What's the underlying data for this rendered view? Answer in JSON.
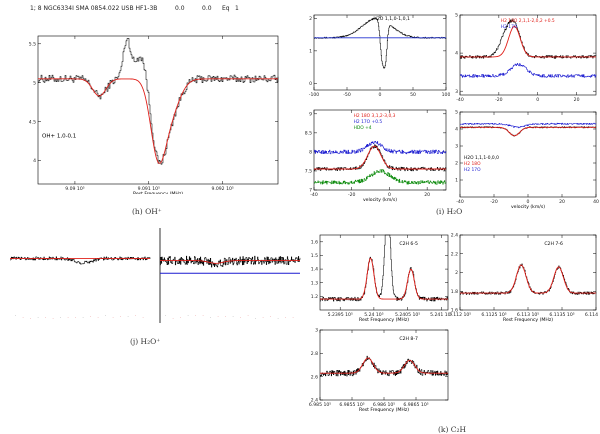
{
  "header": {
    "text": "1;  8 NGC6334I SMA 0854.022 USB HF1-3B",
    "zero1": "0.0",
    "zero2": "0.0",
    "eq": "Eq",
    "one": "1"
  },
  "captions": {
    "h": "(h) OH⁺",
    "i": "(i) H₂O",
    "j": "(j) H₂O⁺",
    "k": "(k) C₂H"
  },
  "chart_data": [
    {
      "id": "h",
      "type": "line",
      "title": "OH+ 1,0-0,1",
      "xlabel": "Rest Frequency (MHz)",
      "xlim": [
        908950,
        909275
      ],
      "ylim": [
        3.7,
        5.6
      ],
      "xticks": [
        909000,
        909100,
        909200
      ],
      "xtick_labels": [
        "9.09 10⁵",
        "9.091 10⁵",
        "9.092 10⁵"
      ],
      "yticks": [
        4,
        4.5,
        5,
        5.5
      ],
      "ytick_labels": [
        "4",
        "4.5",
        "5",
        "5.5"
      ],
      "model": {
        "baseline": 5.05,
        "components": [
          {
            "center": 909033,
            "depth": 0.22,
            "sigma": 9
          },
          {
            "center": 909112,
            "depth": 0.85,
            "sigma": 10
          },
          {
            "center": 909128,
            "depth": 0.45,
            "sigma": 13
          }
        ]
      },
      "obs_extra": [
        {
          "center": 909070,
          "amp": 0.5,
          "sigma": 5
        },
        {
          "center": 909090,
          "amp": 0.35,
          "sigma": 8
        }
      ],
      "noise": 0.05,
      "label_pos": [
        909005,
        4.3
      ]
    },
    {
      "id": "i1",
      "type": "line",
      "title": "H2O 1,1,0-1,0,1",
      "xlim": [
        -100,
        100
      ],
      "ylim": [
        -0.2,
        2.1
      ],
      "xticks": [
        -100,
        -50,
        0,
        50,
        100
      ],
      "xtick_labels": [
        "-100",
        "-50",
        "0",
        "50",
        "100"
      ],
      "yticks": [
        0,
        1,
        2
      ],
      "ytick_labels": [
        "0",
        "1",
        "2"
      ],
      "model": {
        "baseline": 1.4
      },
      "obs_extra": [
        {
          "center": -5,
          "amp": 0.6,
          "sigma": 22
        },
        {
          "center": 3,
          "amp": -1.2,
          "sigma": 3
        },
        {
          "center": 8,
          "amp": -1.0,
          "sigma": 2.5
        }
      ],
      "noise": 0.02,
      "label_pos": [
        -10,
        1.95
      ]
    },
    {
      "id": "i2",
      "type": "line",
      "title": "H2 18O 2,1,1-2,0,2 +0.5",
      "legend": [
        "H2 18O 2,1,1-2,0,2 +0.5",
        "H2 17O"
      ],
      "xlim": [
        -40,
        30
      ],
      "ylim": [
        2.9,
        5.0
      ],
      "xticks": [
        -40,
        -20,
        0,
        20
      ],
      "xtick_labels": [
        "-40",
        "-20",
        "0",
        "20"
      ],
      "yticks": [
        3,
        4,
        5
      ],
      "ytick_labels": [
        "3",
        "4",
        "5"
      ],
      "model": {
        "baseline": 3.9,
        "components": [
          {
            "center": -12,
            "depth": -0.8,
            "sigma": 3
          }
        ]
      },
      "obs_extra": [
        {
          "center": -17,
          "amp": 0.5,
          "sigma": 3
        }
      ],
      "extra_series": {
        "baseline": 3.4,
        "peak": -10,
        "amp": 0.3,
        "sigma": 4
      },
      "noise": 0.04
    },
    {
      "id": "i3",
      "type": "line",
      "title": "H2 18O 3,1,2-3,0,3",
      "legend": [
        "H2 18O 3,1,2-3,0,3",
        "H2 17O +0.5",
        "HDO +4"
      ],
      "xlabel": "velocity (km/s)",
      "xlim": [
        -40,
        30
      ],
      "ylim": [
        7,
        9.1
      ],
      "xticks": [
        -40,
        -20,
        0,
        20
      ],
      "xtick_labels": [
        "-40",
        "-20",
        "0",
        "20"
      ],
      "yticks": [
        7,
        7.5,
        8,
        8.5,
        9
      ],
      "ytick_labels": [
        "7",
        "7.5",
        "8",
        "8.5",
        "9"
      ],
      "model": {
        "baseline": 7.55,
        "components": [
          {
            "center": -8,
            "depth": -0.6,
            "sigma": 3.5
          }
        ]
      },
      "extra_series": {
        "baseline": 8.0,
        "peak": -8,
        "amp": 0.25,
        "sigma": 4
      },
      "green_series": {
        "baseline": 7.2,
        "peak": -5,
        "amp": 0.3,
        "sigma": 5
      },
      "noise": 0.05
    },
    {
      "id": "i4",
      "type": "line",
      "title": "H2O 1,1,1-0,0,0",
      "legend": [
        "H2O 1,1,1-0,0,0",
        "H2 18O",
        "H2 17O"
      ],
      "xlabel": "velocity (km/s)",
      "xlim": [
        -40,
        40
      ],
      "ylim": [
        0,
        5.0
      ],
      "xticks": [
        -40,
        -20,
        0,
        20,
        40
      ],
      "xtick_labels": [
        "-40",
        "-20",
        "0",
        "20",
        "40"
      ],
      "yticks": [
        1,
        2,
        3,
        4,
        5
      ],
      "ytick_labels": [
        "1",
        "2",
        "3",
        "4",
        "5"
      ],
      "model": {
        "baseline": 4.1,
        "components": [
          {
            "center": -8,
            "depth": 0.5,
            "sigma": 3
          }
        ]
      },
      "extra_series": {
        "baseline": 4.3,
        "peak": -6,
        "amp": -0.2,
        "sigma": 4
      },
      "noise": 0.04
    },
    {
      "id": "j1",
      "type": "line",
      "xlim": [
        0,
        100
      ],
      "ylim": [
        0,
        10
      ],
      "model": {
        "baseline": 7.2
      },
      "obs_extra": [
        {
          "center": 52,
          "amp": -0.8,
          "sigma": 6
        }
      ],
      "noise": 0.3
    },
    {
      "id": "j2",
      "type": "line",
      "xlim": [
        0,
        100
      ],
      "ylim": [
        0,
        10
      ],
      "model": {
        "baseline": 6.8,
        "components": [
          {
            "center": 40,
            "depth": 0.5,
            "sigma": 5
          }
        ]
      },
      "noise": 0.8
    },
    {
      "id": "k1",
      "type": "line",
      "title": "C2H 6-5",
      "xlabel": "Rest Frequency (MHz)",
      "xlim": [
        523920,
        524110
      ],
      "ylim": [
        1.1,
        1.65
      ],
      "xticks": [
        523950,
        524000,
        524050,
        524100
      ],
      "xtick_labels": [
        "5.2395 10⁵",
        "5.24 10⁵",
        "5.2405 10⁵",
        "5.241 10⁵"
      ],
      "yticks": [
        1.2,
        1.3,
        1.4,
        1.5,
        1.6
      ],
      "ytick_labels": [
        "1.2",
        "1.3",
        "1.4",
        "1.5",
        "1.6"
      ],
      "model": {
        "baseline": 1.18,
        "components": [
          {
            "center": 523995,
            "depth": -0.3,
            "sigma": 5
          },
          {
            "center": 524055,
            "depth": -0.22,
            "sigma": 5
          }
        ]
      },
      "obs_extra": [
        {
          "center": 524020,
          "amp": 0.7,
          "sigma": 4
        }
      ],
      "noise": 0.015
    },
    {
      "id": "k2",
      "type": "line",
      "title": "C2H 7-6",
      "xlabel": "Rest Frequency (MHz)",
      "xlim": [
        611200,
        611400
      ],
      "ylim": [
        1.6,
        2.4
      ],
      "xticks": [
        611200,
        611250,
        611300,
        611350,
        611400
      ],
      "xtick_labels": [
        "6.112 10⁵",
        "6.1125 10⁵",
        "6.113 10⁵",
        "6.1135 10⁵",
        "6.114 10⁵"
      ],
      "yticks": [
        1.6,
        1.8,
        2.0,
        2.2,
        2.4
      ],
      "ytick_labels": [
        "1.6",
        "1.8",
        "2",
        "2.2",
        "2.4"
      ],
      "model": {
        "baseline": 1.78,
        "components": [
          {
            "center": 611290,
            "depth": -0.3,
            "sigma": 7
          },
          {
            "center": 611345,
            "depth": -0.28,
            "sigma": 7
          }
        ]
      },
      "noise": 0.015
    },
    {
      "id": "k3",
      "type": "line",
      "title": "C2H 8-7",
      "xlabel": "Rest Frequency (MHz)",
      "xlim": [
        698500,
        698700
      ],
      "ylim": [
        2.4,
        3.0
      ],
      "xticks": [
        698500,
        698550,
        698600,
        698650
      ],
      "xtick_labels": [
        "6.985 10⁵",
        "6.9855 10⁵",
        "6.986 10⁵",
        "6.9865 10⁵"
      ],
      "yticks": [
        2.4,
        2.6,
        2.8,
        3.0
      ],
      "ytick_labels": [
        "2.4",
        "2.6",
        "2.8",
        "3"
      ],
      "model": {
        "baseline": 2.63,
        "components": [
          {
            "center": 698575,
            "depth": -0.13,
            "sigma": 8
          },
          {
            "center": 698640,
            "depth": -0.11,
            "sigma": 8
          }
        ]
      },
      "noise": 0.025
    }
  ]
}
